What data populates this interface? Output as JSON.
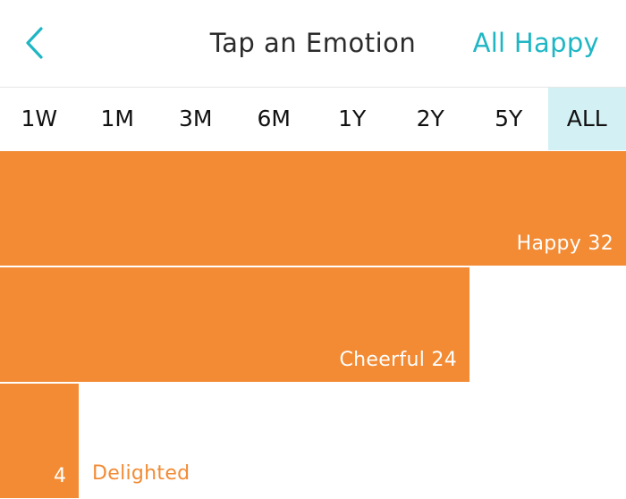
{
  "header": {
    "title": "Tap an Emotion",
    "right_action": "All Happy",
    "accent_color": "#1fb6c4",
    "back_icon": "chevron-left-icon"
  },
  "ranges": {
    "items": [
      "1W",
      "1M",
      "3M",
      "6M",
      "1Y",
      "2Y",
      "5Y",
      "ALL"
    ],
    "selected": "ALL",
    "selected_color": "#d3f1f4"
  },
  "emotions": {
    "bar_color": "#f28b34",
    "items": [
      {
        "name": "Happy",
        "count": "32",
        "label": "Happy 32"
      },
      {
        "name": "Cheerful",
        "count": "24",
        "label": "Cheerful 24"
      },
      {
        "name": "Delighted",
        "count": "4",
        "label": "Delighted"
      }
    ]
  }
}
